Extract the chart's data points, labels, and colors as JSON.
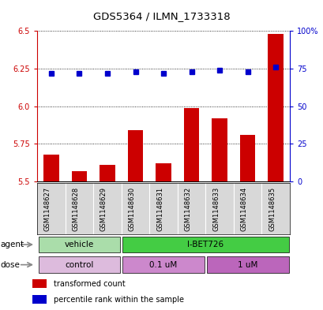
{
  "title": "GDS5364 / ILMN_1733318",
  "samples": [
    "GSM1148627",
    "GSM1148628",
    "GSM1148629",
    "GSM1148630",
    "GSM1148631",
    "GSM1148632",
    "GSM1148633",
    "GSM1148634",
    "GSM1148635"
  ],
  "bar_values": [
    5.68,
    5.57,
    5.61,
    5.84,
    5.62,
    5.99,
    5.92,
    5.81,
    6.48
  ],
  "dot_values": [
    72,
    72,
    72,
    73,
    72,
    73,
    74,
    73,
    76
  ],
  "ylim_left": [
    5.5,
    6.5
  ],
  "ylim_right": [
    0,
    100
  ],
  "yticks_left": [
    5.5,
    5.75,
    6.0,
    6.25,
    6.5
  ],
  "yticks_right": [
    0,
    25,
    50,
    75,
    100
  ],
  "bar_color": "#cc0000",
  "dot_color": "#0000cc",
  "agent_groups": [
    {
      "label": "vehicle",
      "start": 0,
      "end": 3,
      "color": "#aaddaa"
    },
    {
      "label": "I-BET726",
      "start": 3,
      "end": 9,
      "color": "#44cc44"
    }
  ],
  "dose_groups": [
    {
      "label": "control",
      "start": 0,
      "end": 3,
      "color": "#ddbbdd"
    },
    {
      "label": "0.1 uM",
      "start": 3,
      "end": 6,
      "color": "#cc88cc"
    },
    {
      "label": "1 uM",
      "start": 6,
      "end": 9,
      "color": "#bb66bb"
    }
  ],
  "legend_items": [
    {
      "color": "#cc0000",
      "label": "transformed count"
    },
    {
      "color": "#0000cc",
      "label": "percentile rank within the sample"
    }
  ],
  "left_axis_color": "#cc0000",
  "right_axis_color": "#0000cc",
  "sample_bg_color": "#d8d8d8",
  "plot_bg": "#ffffff"
}
